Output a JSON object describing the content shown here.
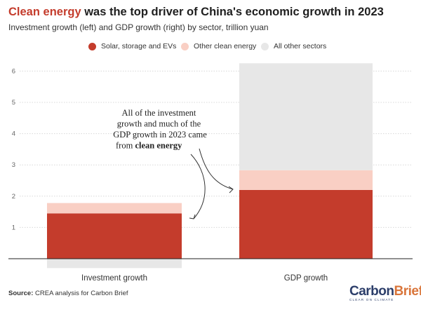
{
  "header": {
    "title_highlight": "Clean energy",
    "title_rest": " was the top driver of China's economic growth in 2023",
    "subtitle": "Investment growth (left) and GDP growth (right) by sector, trillion yuan"
  },
  "colors": {
    "solar": "#c43c2c",
    "other_clean": "#f9cfc4",
    "all_other": "#e7e7e7",
    "brand_blue": "#2c3e6a",
    "brand_orange": "#d9753a"
  },
  "annotation": {
    "lines": [
      "All of the investment",
      "growth and much of the",
      "GDP growth in 2023 came"
    ],
    "last_prefix": "from ",
    "last_bold": "clean energy"
  },
  "chart_data": {
    "type": "bar",
    "stacked": true,
    "categories": [
      "Investment growth",
      "GDP growth"
    ],
    "series": [
      {
        "name": "Solar, storage and EVs",
        "values": [
          1.45,
          2.2
        ]
      },
      {
        "name": "Other clean energy",
        "values": [
          0.33,
          0.63
        ]
      },
      {
        "name": "All other sectors",
        "values": [
          -0.3,
          3.42
        ]
      }
    ],
    "yticks": [
      1,
      2,
      3,
      4,
      5,
      6
    ],
    "ylim": [
      -0.3,
      6.3
    ],
    "grid": true,
    "legend": "top-center"
  },
  "source": {
    "label": "Source:",
    "text": " CREA analysis for Carbon Brief"
  },
  "logo": {
    "part1": "Carbon",
    "part2": "Brief",
    "tagline": "CLEAR ON CLIMATE"
  }
}
